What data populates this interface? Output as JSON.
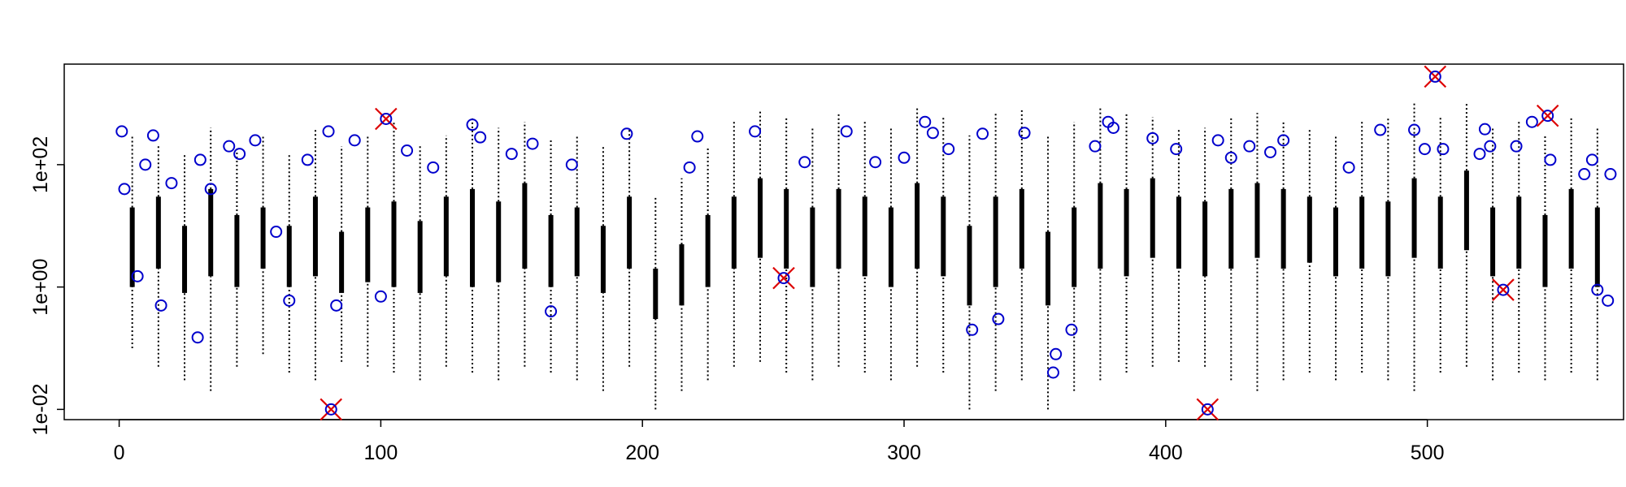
{
  "chart_data": {
    "type": "boxplot",
    "log_y": true,
    "xlim": [
      -21,
      575
    ],
    "ylim": [
      0.0068,
      4400
    ],
    "xticks": [
      0,
      100,
      200,
      300,
      400,
      500
    ],
    "yticks": [
      {
        "value": 0.01,
        "label": "1e-02"
      },
      {
        "value": 1,
        "label": "1e+00"
      },
      {
        "value": 100,
        "label": "1e+02"
      }
    ],
    "color": "#000000",
    "x": [
      5,
      15,
      25,
      35,
      45,
      55,
      65,
      75,
      85,
      95,
      105,
      115,
      125,
      135,
      145,
      155,
      165,
      175,
      185,
      195,
      205,
      215,
      225,
      235,
      245,
      255,
      265,
      275,
      285,
      295,
      305,
      315,
      325,
      335,
      345,
      355,
      365,
      375,
      385,
      395,
      405,
      415,
      425,
      435,
      445,
      455,
      465,
      475,
      485,
      495,
      505,
      515,
      525,
      535,
      545,
      555,
      565
    ],
    "low": [
      0.1,
      0.05,
      0.03,
      0.02,
      0.05,
      0.08,
      0.04,
      0.03,
      0.06,
      0.05,
      0.04,
      0.03,
      0.05,
      0.04,
      0.03,
      0.05,
      0.04,
      0.03,
      0.02,
      0.05,
      0.01,
      0.02,
      0.03,
      0.05,
      0.06,
      0.04,
      0.03,
      0.05,
      0.04,
      0.03,
      0.05,
      0.04,
      0.01,
      0.02,
      0.03,
      0.01,
      0.02,
      0.03,
      0.04,
      0.05,
      0.06,
      0.05,
      0.03,
      0.02,
      0.03,
      0.04,
      0.03,
      0.04,
      0.03,
      0.02,
      0.04,
      0.05,
      0.03,
      0.04,
      0.03,
      0.04,
      0.03
    ],
    "q1": [
      1,
      2,
      0.8,
      1.5,
      1,
      2,
      1,
      1.5,
      0.8,
      1.2,
      1,
      0.8,
      1.5,
      1,
      1.2,
      2,
      1,
      1.5,
      0.8,
      2,
      0.3,
      0.5,
      1,
      2,
      3,
      2,
      1,
      2,
      1.5,
      1,
      2,
      1.5,
      0.5,
      1,
      2,
      0.5,
      1,
      2,
      1.5,
      3,
      2,
      1.5,
      2,
      3,
      2,
      2.5,
      1.5,
      2,
      1.5,
      3,
      2,
      4,
      1.5,
      2,
      1,
      2,
      1
    ],
    "q3": [
      20,
      30,
      10,
      40,
      15,
      20,
      10,
      30,
      8,
      20,
      25,
      12,
      30,
      40,
      25,
      50,
      15,
      20,
      10,
      30,
      2,
      5,
      15,
      30,
      60,
      40,
      20,
      40,
      30,
      20,
      50,
      30,
      10,
      30,
      40,
      8,
      20,
      50,
      40,
      60,
      30,
      25,
      40,
      50,
      40,
      30,
      20,
      30,
      25,
      60,
      30,
      80,
      20,
      30,
      15,
      40,
      20
    ],
    "high": [
      300,
      200,
      150,
      400,
      200,
      300,
      150,
      400,
      200,
      300,
      500,
      200,
      300,
      600,
      400,
      500,
      250,
      300,
      200,
      400,
      30,
      60,
      200,
      500,
      800,
      600,
      400,
      700,
      500,
      400,
      900,
      600,
      300,
      700,
      800,
      300,
      500,
      900,
      700,
      600,
      400,
      400,
      600,
      700,
      500,
      400,
      300,
      500,
      600,
      1000,
      600,
      1000,
      400,
      500,
      300,
      600,
      400
    ],
    "outliers": {
      "color": "#0000cc",
      "x": [
        1,
        2,
        7,
        10,
        13,
        16,
        20,
        30,
        31,
        35,
        42,
        46,
        52,
        60,
        65,
        72,
        80,
        83,
        90,
        100,
        110,
        120,
        135,
        138,
        150,
        158,
        165,
        173,
        194,
        218,
        221,
        243,
        262,
        278,
        289,
        300,
        308,
        311,
        317,
        326,
        330,
        336,
        346,
        357,
        358,
        364,
        373,
        378,
        380,
        395,
        404,
        420,
        425,
        432,
        440,
        445,
        470,
        482,
        495,
        499,
        506,
        520,
        522,
        524,
        534,
        540,
        547,
        560,
        563,
        565,
        569,
        570
      ],
      "values": [
        350,
        40,
        1.5,
        100,
        300,
        0.5,
        50,
        0.15,
        120,
        40,
        200,
        150,
        250,
        8,
        0.6,
        120,
        350,
        0.5,
        250,
        0.7,
        170,
        90,
        450,
        280,
        150,
        220,
        0.4,
        100,
        320,
        90,
        290,
        350,
        110,
        350,
        110,
        130,
        500,
        330,
        180,
        0.2,
        320,
        0.3,
        330,
        0.04,
        0.08,
        0.2,
        200,
        500,
        400,
        270,
        180,
        250,
        130,
        200,
        160,
        250,
        90,
        370,
        370,
        180,
        180,
        150,
        380,
        200,
        200,
        500,
        120,
        70,
        120,
        0.9,
        0.6,
        70
      ]
    },
    "highlights": {
      "color": "#dd0000",
      "x": [
        81,
        102,
        254,
        416,
        503,
        529,
        546
      ],
      "values": [
        0.01,
        560,
        1.4,
        0.01,
        2750,
        0.9,
        630
      ]
    }
  }
}
